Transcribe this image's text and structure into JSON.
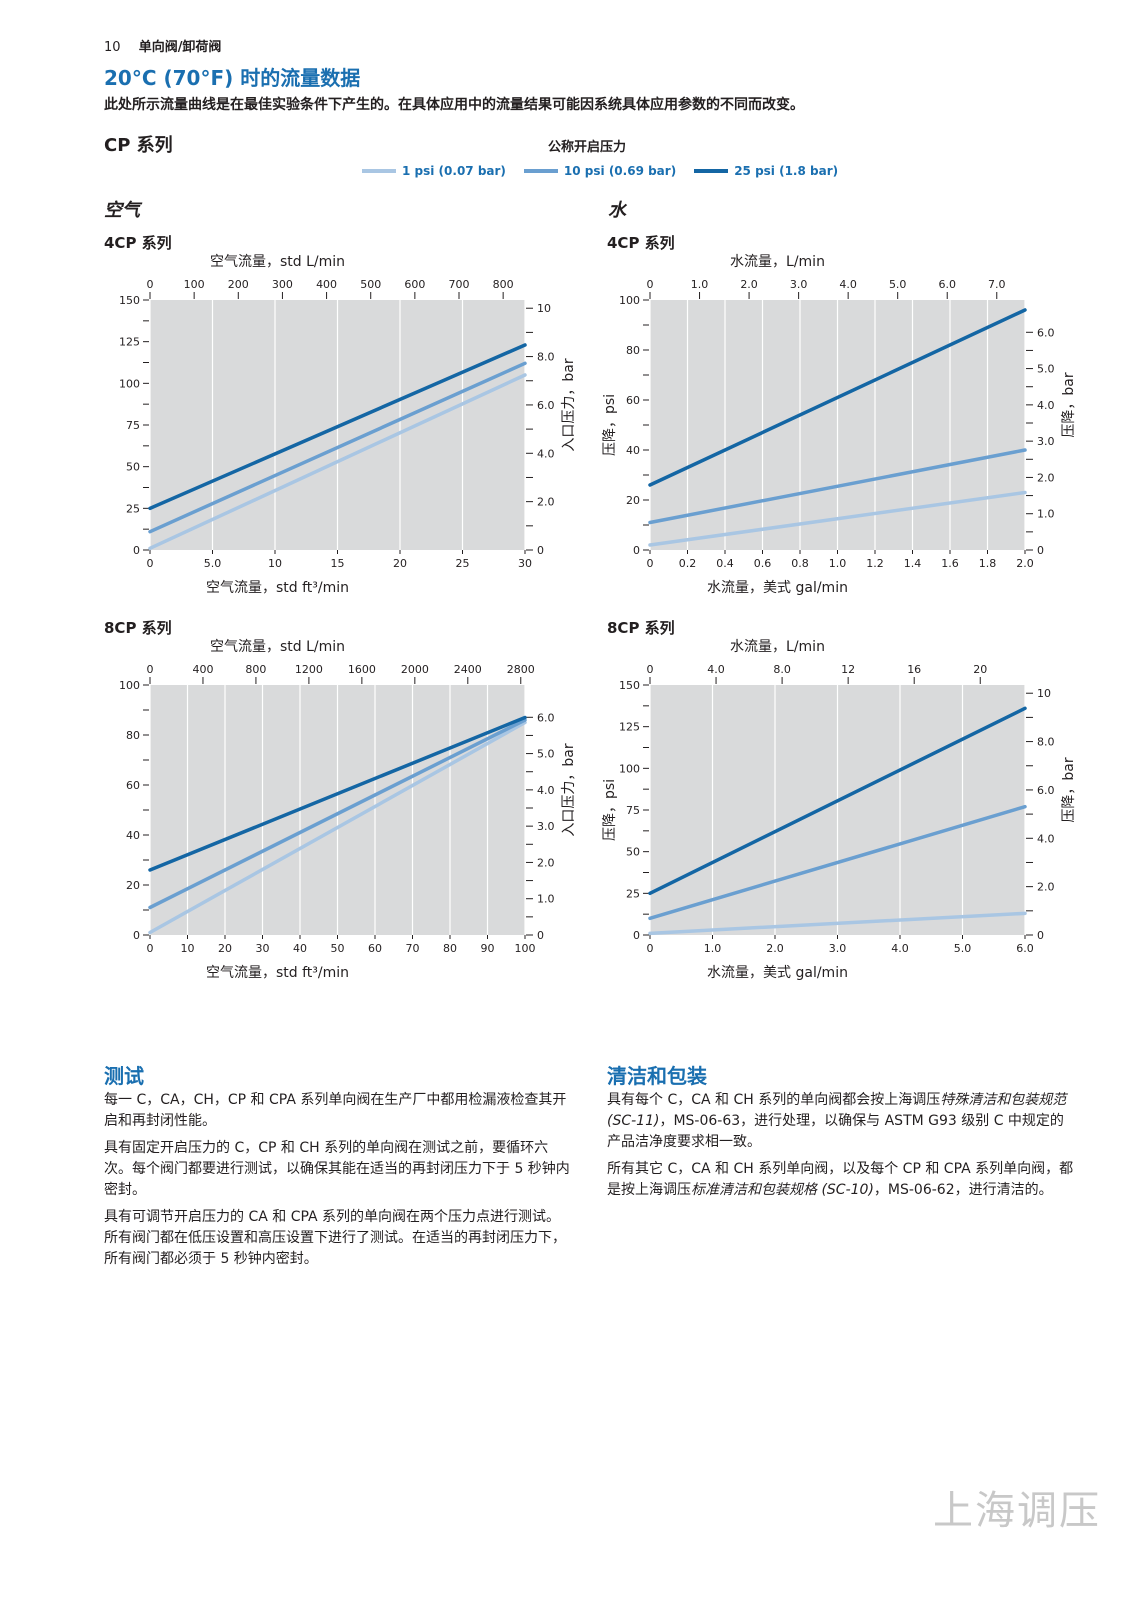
{
  "header": {
    "page_number": "10",
    "section": "单向阀/卸荷阀"
  },
  "title": "20°C (70°F) 时的流量数据",
  "subtitle": "此处所示流量曲线是在最佳实验条件下产生的。在具体应用中的流量结果可能因系统具体应用参数的不同而改变。",
  "series_title": "CP 系列",
  "legend": {
    "title": "公称开启压力",
    "items": [
      {
        "label": "1 psi (0.07 bar)",
        "color": "#a9c6e3"
      },
      {
        "label": "10 psi (0.69 bar)",
        "color": "#6a9fd0"
      },
      {
        "label": "25 psi (1.8 bar)",
        "color": "#1466a4"
      }
    ]
  },
  "media": {
    "air": "空气",
    "water": "水"
  },
  "chart_data": [
    {
      "id": "air4",
      "type": "line",
      "title": "4CP 系列",
      "xlabel": "空气流量，std ft³/min",
      "x2label": "空气流量，std L/min",
      "ylabel": "",
      "y2label": "入口压力，bar",
      "xlim": [
        0,
        30
      ],
      "ylim": [
        0,
        150
      ],
      "xticks": [
        "0",
        "5.0",
        "10",
        "15",
        "20",
        "25",
        "30"
      ],
      "x2lim": [
        0,
        849.5
      ],
      "x2ticks": [
        0,
        100,
        200,
        300,
        400,
        500,
        600,
        700,
        800
      ],
      "x2ticklabels": [
        "0",
        "100",
        "200",
        "300",
        "400",
        "500",
        "600",
        "700",
        "800"
      ],
      "yticks": [
        0,
        25,
        50,
        75,
        100,
        125,
        150
      ],
      "yticklabels": [
        "0",
        "25",
        "50",
        "75",
        "100",
        "125",
        "150"
      ],
      "y2lim": [
        0,
        10.34
      ],
      "y2ticks": [
        0,
        2,
        4,
        6,
        8,
        10
      ],
      "y2ticklabels": [
        "0",
        "2.0",
        "4.0",
        "6.0",
        "8.0",
        "10"
      ],
      "grid_x": [
        0,
        5,
        10,
        15,
        20,
        25,
        30
      ],
      "series": [
        {
          "name": "1 psi (0.07 bar)",
          "x": [
            0,
            30
          ],
          "y": [
            1,
            105
          ]
        },
        {
          "name": "10 psi (0.69 bar)",
          "x": [
            0,
            30
          ],
          "y": [
            11,
            112
          ]
        },
        {
          "name": "25 psi (1.8 bar)",
          "x": [
            0,
            30
          ],
          "y": [
            25,
            123
          ]
        }
      ]
    },
    {
      "id": "water4",
      "type": "line",
      "title": "4CP 系列",
      "xlabel": "水流量，美式 gal/min",
      "x2label": "水流量，L/min",
      "ylabel": "压降，psi",
      "y2label": "压降，bar",
      "xlim": [
        0,
        2.0
      ],
      "ylim": [
        0,
        100
      ],
      "xticks": [
        "0",
        "0.2",
        "0.4",
        "0.6",
        "0.8",
        "1.0",
        "1.2",
        "1.4",
        "1.6",
        "1.8",
        "2.0"
      ],
      "x2lim": [
        0,
        7.57
      ],
      "x2ticks": [
        0,
        1,
        2,
        3,
        4,
        5,
        6,
        7
      ],
      "x2ticklabels": [
        "0",
        "1.0",
        "2.0",
        "3.0",
        "4.0",
        "5.0",
        "6.0",
        "7.0"
      ],
      "yticks": [
        0,
        20,
        40,
        60,
        80,
        100
      ],
      "yticklabels": [
        "0",
        "20",
        "40",
        "60",
        "80",
        "100"
      ],
      "y2lim": [
        0,
        6.89
      ],
      "y2ticks": [
        0,
        1,
        2,
        3,
        4,
        5,
        6
      ],
      "y2ticklabels": [
        "0",
        "1.0",
        "2.0",
        "3.0",
        "4.0",
        "5.0",
        "6.0"
      ],
      "grid_x": [
        0,
        0.2,
        0.4,
        0.6,
        0.8,
        1.0,
        1.2,
        1.4,
        1.6,
        1.8,
        2.0
      ],
      "series": [
        {
          "name": "1 psi (0.07 bar)",
          "x": [
            0,
            2.0
          ],
          "y": [
            2,
            23
          ]
        },
        {
          "name": "10 psi (0.69 bar)",
          "x": [
            0,
            2.0
          ],
          "y": [
            11,
            40
          ]
        },
        {
          "name": "25 psi (1.8 bar)",
          "x": [
            0,
            2.0
          ],
          "y": [
            26,
            96
          ]
        }
      ]
    },
    {
      "id": "air8",
      "type": "line",
      "title": "8CP 系列",
      "xlabel": "空气流量，std ft³/min",
      "x2label": "空气流量，std L/min",
      "ylabel": "",
      "y2label": "入口压力，bar",
      "xlim": [
        0,
        100
      ],
      "ylim": [
        0,
        100
      ],
      "xticks": [
        "0",
        "10",
        "20",
        "30",
        "40",
        "50",
        "60",
        "70",
        "80",
        "90",
        "100"
      ],
      "x2lim": [
        0,
        2832
      ],
      "x2ticks": [
        0,
        400,
        800,
        1200,
        1600,
        2000,
        2400,
        2800
      ],
      "x2ticklabels": [
        "0",
        "400",
        "800",
        "1200",
        "1600",
        "2000",
        "2400",
        "2800"
      ],
      "yticks": [
        0,
        20,
        40,
        60,
        80,
        100
      ],
      "yticklabels": [
        "0",
        "20",
        "40",
        "60",
        "80",
        "100"
      ],
      "y2lim": [
        0,
        6.89
      ],
      "y2ticks": [
        0,
        1,
        2,
        3,
        4,
        5,
        6
      ],
      "y2ticklabels": [
        "0",
        "1.0",
        "2.0",
        "3.0",
        "4.0",
        "5.0",
        "6.0"
      ],
      "grid_x": [
        0,
        10,
        20,
        30,
        40,
        50,
        60,
        70,
        80,
        90,
        100
      ],
      "series": [
        {
          "name": "1 psi (0.07 bar)",
          "x": [
            0,
            100
          ],
          "y": [
            1,
            85
          ]
        },
        {
          "name": "10 psi (0.69 bar)",
          "x": [
            0,
            100
          ],
          "y": [
            11,
            86
          ]
        },
        {
          "name": "25 psi (1.8 bar)",
          "x": [
            0,
            100
          ],
          "y": [
            26,
            87
          ]
        }
      ]
    },
    {
      "id": "water8",
      "type": "line",
      "title": "8CP 系列",
      "xlabel": "水流量，美式 gal/min",
      "x2label": "水流量，L/min",
      "ylabel": "压降，psi",
      "y2label": "压降，bar",
      "xlim": [
        0,
        6.0
      ],
      "ylim": [
        0,
        150
      ],
      "xticks": [
        "0",
        "1.0",
        "2.0",
        "3.0",
        "4.0",
        "5.0",
        "6.0"
      ],
      "x2lim": [
        0,
        22.71
      ],
      "x2ticks": [
        0,
        4,
        8,
        12,
        16,
        20
      ],
      "x2ticklabels": [
        "0",
        "4.0",
        "8.0",
        "12",
        "16",
        "20"
      ],
      "yticks": [
        0,
        25,
        50,
        75,
        100,
        125,
        150
      ],
      "yticklabels": [
        "0",
        "25",
        "50",
        "75",
        "100",
        "125",
        "150"
      ],
      "y2lim": [
        0,
        10.34
      ],
      "y2ticks": [
        0,
        2,
        4,
        6,
        8,
        10
      ],
      "y2ticklabels": [
        "0",
        "2.0",
        "4.0",
        "6.0",
        "8.0",
        "10"
      ],
      "grid_x": [
        0,
        1,
        2,
        3,
        4,
        5,
        6
      ],
      "series": [
        {
          "name": "1 psi (0.07 bar)",
          "x": [
            0,
            6.0
          ],
          "y": [
            1,
            13
          ]
        },
        {
          "name": "10 psi (0.69 bar)",
          "x": [
            0,
            6.0
          ],
          "y": [
            10,
            77
          ]
        },
        {
          "name": "25 psi (1.8 bar)",
          "x": [
            0,
            6.0
          ],
          "y": [
            25,
            136
          ]
        }
      ]
    }
  ],
  "testing": {
    "heading": "测试",
    "paragraphs": [
      "每一 C，CA，CH，CP 和 CPA 系列单向阀在生产厂中都用检漏液检查其开启和再封闭性能。",
      "具有固定开启压力的 C，CP 和 CH 系列的单向阀在测试之前，要循环六次。每个阀门都要进行测试，以确保其能在适当的再封闭压力下于 5 秒钟内密封。",
      "具有可调节开启压力的 CA 和 CPA 系列的单向阀在两个压力点进行测试。所有阀门都在低压设置和高压设置下进行了测试。在适当的再封闭压力下，所有阀门都必须于 5 秒钟内密封。"
    ]
  },
  "cleaning": {
    "heading": "清洁和包装",
    "p1_a": "具有每个 C，CA 和 CH 系列的单向阀都会按上海调压",
    "p1_b": "特殊清洁和包装规范 (SC-11)",
    "p1_c": "，MS-06-63，进行处理，以确保与 ASTM G93 级别 C 中规定的产品洁净度要求相一致。",
    "p2_a": "所有其它 C，CA 和 CH 系列单向阀，以及每个 CP 和 CPA 系列单向阀，都是按上海调压",
    "p2_b": "标准清洁和包装规格 (SC-10)",
    "p2_c": "，MS-06-62，进行清洁的。"
  },
  "brand": "上海调压"
}
